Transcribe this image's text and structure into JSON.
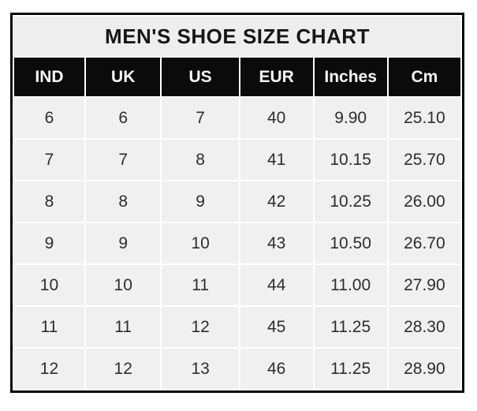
{
  "chart_data": {
    "type": "table",
    "title": "MEN'S SHOE SIZE CHART",
    "columns": [
      "IND",
      "UK",
      "US",
      "EUR",
      "Inches",
      "Cm"
    ],
    "rows": [
      [
        "6",
        "6",
        "7",
        "40",
        "9.90",
        "25.10"
      ],
      [
        "7",
        "7",
        "8",
        "41",
        "10.15",
        "25.70"
      ],
      [
        "8",
        "8",
        "9",
        "42",
        "10.25",
        "26.00"
      ],
      [
        "9",
        "9",
        "10",
        "43",
        "10.50",
        "26.70"
      ],
      [
        "10",
        "10",
        "11",
        "44",
        "11.00",
        "27.90"
      ],
      [
        "11",
        "11",
        "12",
        "45",
        "11.25",
        "28.30"
      ],
      [
        "12",
        "12",
        "13",
        "46",
        "11.25",
        "28.90"
      ]
    ],
    "layout": {
      "title_position": "top-spanning-row",
      "grid": "white gridlines between cells",
      "colors": {
        "outer_border": "#060606",
        "title_bg": "#efeeee",
        "title_text": "#161616",
        "header_bg": "#0b0b0b",
        "header_text": "#f7f7f7",
        "row_bg": "#f1f0f0",
        "cell_text": "#2d2d2d",
        "gridline": "#ffffff",
        "page_bg": "#ffffff"
      }
    }
  }
}
